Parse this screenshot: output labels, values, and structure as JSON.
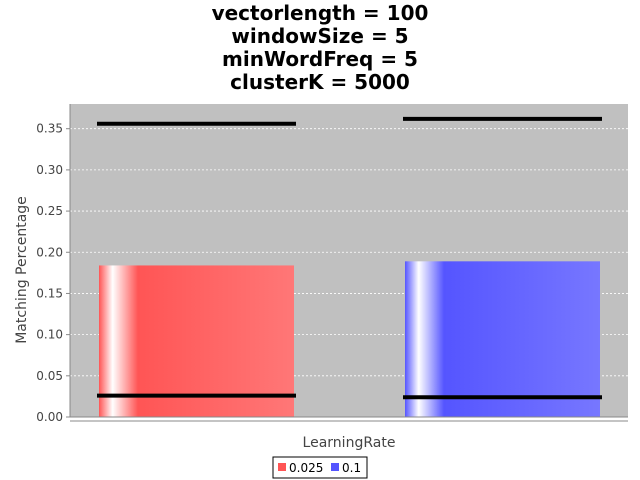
{
  "chart_data": {
    "type": "bar",
    "title_lines": [
      "vectorlength = 100",
      "windowSize = 5",
      "minWordFreq = 5",
      "clusterK = 5000"
    ],
    "xlabel": "LearningRate",
    "ylabel": "Matching Percentage",
    "categories": [
      ""
    ],
    "ylim": [
      0,
      0.38
    ],
    "yticks": [
      "0.00",
      "0.05",
      "0.10",
      "0.15",
      "0.20",
      "0.25",
      "0.30",
      "0.35"
    ],
    "grid": true,
    "legend_position": "bottom-center",
    "series": [
      {
        "name": "0.025",
        "values": [
          0.184
        ],
        "error_low": [
          0.026
        ],
        "error_high": [
          0.356
        ],
        "color": "#ff5555"
      },
      {
        "name": "0.1",
        "values": [
          0.189
        ],
        "error_low": [
          0.024
        ],
        "error_high": [
          0.362
        ],
        "color": "#5555ff"
      }
    ]
  },
  "colors": {
    "plot_background": "#c0c0c0",
    "gridline": "#ffffff",
    "error_bar": "#000000",
    "axis": "#888888"
  }
}
